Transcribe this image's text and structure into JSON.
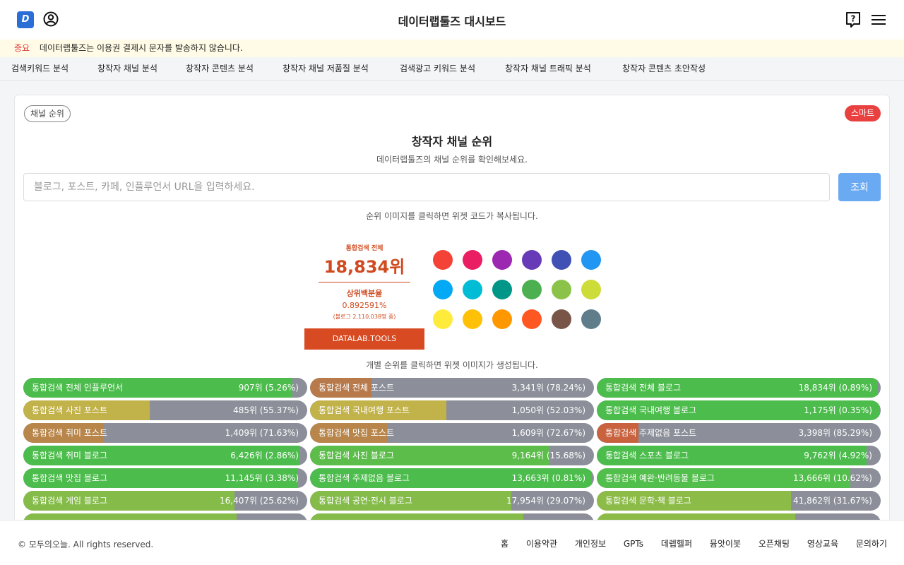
{
  "header": {
    "title": "데이터랩툴즈 대시보드",
    "logo_icon": "datalab-logo-icon",
    "user_icon": "user-circle-icon",
    "help_icon": "help-icon",
    "menu_icon": "hamburger-menu-icon"
  },
  "notice": {
    "tag": "중요",
    "text": "데이터랩툴즈는 이용권 결제시 문자를 발송하지 않습니다."
  },
  "nav": {
    "items": [
      "검색키워드 분석",
      "창작자 채널 분석",
      "창작자 콘텐츠 분석",
      "창작자 채널 저품질 분석",
      "검색광고 키워드 분석",
      "창작자 채널 트래픽 분석",
      "창작자 콘텐츠 초안작성"
    ]
  },
  "card": {
    "badge": "채널 순위",
    "smart_badge": "스마트",
    "title": "창작자 채널 순위",
    "subtitle": "데이터랩툴즈의 채널 순위를 확인해보세요.",
    "search_placeholder": "블로그, 포스트, 카페, 인플루언서 URL을 입력하세요.",
    "search_button": "조회",
    "hint_widget_code": "순위 이미지를 클릭하면 위젯 코드가 복사됩니다.",
    "hint_widget_image": "개별 순위를 클릭하면 위젯 이미지가 생성됩니다."
  },
  "widget": {
    "label": "통합검색 전체",
    "rank": "18,834위",
    "percent_label": "상위백분율",
    "percent": "0.892591%",
    "blog_count": "(블로그 2,110,038명 중)",
    "brand": "DATALAB.TOOLS",
    "accent_color": "#d84a22"
  },
  "swatches": [
    "#f44336",
    "#e91e63",
    "#9c27b0",
    "#673ab7",
    "#3f51b5",
    "#2196f3",
    "#03a9f4",
    "#00bcd4",
    "#009688",
    "#4caf50",
    "#8bc34a",
    "#cddc39",
    "#ffeb3b",
    "#ffc107",
    "#ff9800",
    "#ff5722",
    "#795548",
    "#607d8b"
  ],
  "ranks": [
    {
      "name": "통합검색 전체 인플루언서",
      "value": "907위 (5.26%)",
      "percent": 5.26,
      "color": "#4cbc4c"
    },
    {
      "name": "통합검색 전체 포스트",
      "value": "3,341위 (78.24%)",
      "percent": 78.24,
      "color": "#b87a4b"
    },
    {
      "name": "통합검색 전체 블로그",
      "value": "18,834위 (0.89%)",
      "percent": 0.89,
      "color": "#4cbc4c"
    },
    {
      "name": "통합검색 사진 포스트",
      "value": "485위 (55.37%)",
      "percent": 55.37,
      "color": "#c2b24a"
    },
    {
      "name": "통합검색 국내여행 포스트",
      "value": "1,050위 (52.03%)",
      "percent": 52.03,
      "color": "#c2b24a"
    },
    {
      "name": "통합검색 국내여행 블로그",
      "value": "1,175위 (0.35%)",
      "percent": 0.35,
      "color": "#4cbc4c"
    },
    {
      "name": "통합검색 취미 포스트",
      "value": "1,409위 (71.63%)",
      "percent": 71.63,
      "color": "#b8864b"
    },
    {
      "name": "통합검색 맛집 포스트",
      "value": "1,609위 (72.67%)",
      "percent": 72.67,
      "color": "#b8864b"
    },
    {
      "name": "통합검색 주제없음 포스트",
      "value": "3,398위 (85.29%)",
      "percent": 85.29,
      "color": "#c8623f"
    },
    {
      "name": "통합검색 취미 블로그",
      "value": "6,426위 (2.86%)",
      "percent": 2.86,
      "color": "#4cbc4c"
    },
    {
      "name": "통합검색 사진 블로그",
      "value": "9,164위 (15.68%)",
      "percent": 15.68,
      "color": "#5cbd4a"
    },
    {
      "name": "통합검색 스포츠 블로그",
      "value": "9,762위 (4.92%)",
      "percent": 4.92,
      "color": "#4cbc4c"
    },
    {
      "name": "통합검색 맛집 블로그",
      "value": "11,145위 (3.38%)",
      "percent": 3.38,
      "color": "#4cbc4c"
    },
    {
      "name": "통합검색 주제없음 블로그",
      "value": "13,663위 (0.81%)",
      "percent": 0.81,
      "color": "#4cbc4c"
    },
    {
      "name": "통합검색 예완·반려동물 블로그",
      "value": "13,666위 (10.62%)",
      "percent": 10.62,
      "color": "#52be4b"
    },
    {
      "name": "통합검색 게임 블로그",
      "value": "16,407위 (25.62%)",
      "percent": 25.62,
      "color": "#84bb49"
    },
    {
      "name": "통합검색 공연·전시 블로그",
      "value": "17,954위 (29.07%)",
      "percent": 29.07,
      "color": "#84bb49"
    },
    {
      "name": "통합검색 문학·책 블로그",
      "value": "41,862위 (31.67%)",
      "percent": 31.67,
      "color": "#8cbb48"
    },
    {
      "name": "",
      "value": "",
      "percent": 25,
      "color": "#84bb49"
    },
    {
      "name": "",
      "value": "",
      "percent": 25,
      "color": "#84bb49"
    },
    {
      "name": "",
      "value": "",
      "percent": 30,
      "color": "#8cbb48"
    }
  ],
  "footer": {
    "copyright": "© 모두의오늘. All rights reserved.",
    "links": [
      "홈",
      "이용약관",
      "개인정보",
      "GPTs",
      "데렙헬퍼",
      "뮴앗이봇",
      "오픈채팅",
      "영상교육",
      "문의하기"
    ]
  }
}
